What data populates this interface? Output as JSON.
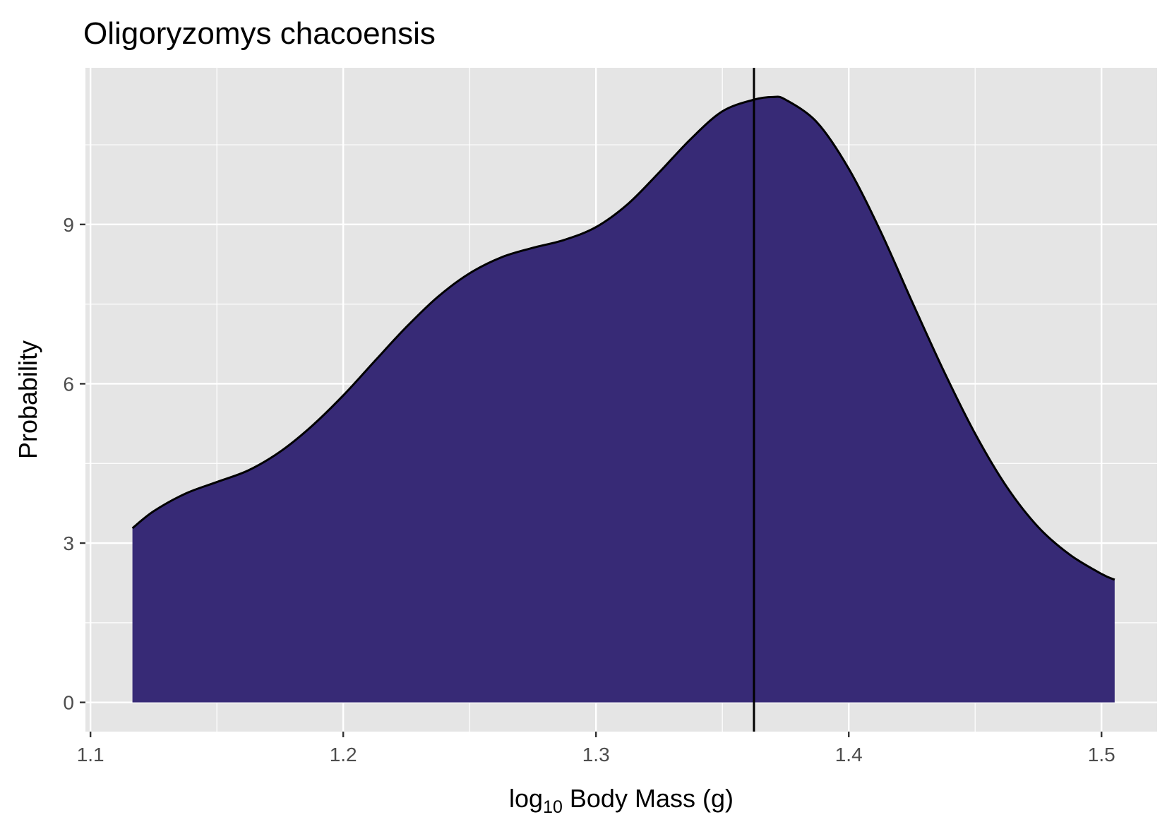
{
  "chart_data": {
    "type": "area",
    "title": "Oligoryzomys chacoensis",
    "xlabel": {
      "prefix": "log",
      "subscript": "10",
      "suffix": " Body Mass (g)"
    },
    "ylabel": "Probability",
    "xlim": [
      1.098,
      1.522
    ],
    "ylim": [
      -0.55,
      11.95
    ],
    "x_ticks": [
      1.1,
      1.2,
      1.3,
      1.4,
      1.5
    ],
    "x_tick_labels": [
      "1.1",
      "1.2",
      "1.3",
      "1.4",
      "1.5"
    ],
    "y_ticks": [
      0,
      3,
      6,
      9
    ],
    "y_tick_labels": [
      "0",
      "3",
      "6",
      "9"
    ],
    "grid": true,
    "legend": "none",
    "vline_x": 1.3625,
    "colors": {
      "fill": "#372a76",
      "outline": "#000000",
      "panel": "#e5e5e5",
      "grid": "#ffffff",
      "vline": "#000000"
    },
    "series": [
      {
        "x": [
          1.1166,
          1.125,
          1.1375,
          1.15,
          1.1625,
          1.175,
          1.1875,
          1.2,
          1.2125,
          1.225,
          1.2375,
          1.25,
          1.2625,
          1.275,
          1.2875,
          1.3,
          1.3125,
          1.325,
          1.3375,
          1.35,
          1.3625,
          1.37,
          1.375,
          1.3875,
          1.4,
          1.4125,
          1.425,
          1.4375,
          1.45,
          1.4625,
          1.475,
          1.4875,
          1.5,
          1.5052
        ],
        "y": [
          3.28,
          3.6,
          3.93,
          4.15,
          4.37,
          4.72,
          5.2,
          5.78,
          6.43,
          7.07,
          7.64,
          8.08,
          8.38,
          8.56,
          8.71,
          8.95,
          9.38,
          9.98,
          10.61,
          11.13,
          11.35,
          11.4,
          11.35,
          10.92,
          10.05,
          8.88,
          7.55,
          6.25,
          5.06,
          4.06,
          3.3,
          2.78,
          2.42,
          2.31
        ]
      }
    ]
  }
}
